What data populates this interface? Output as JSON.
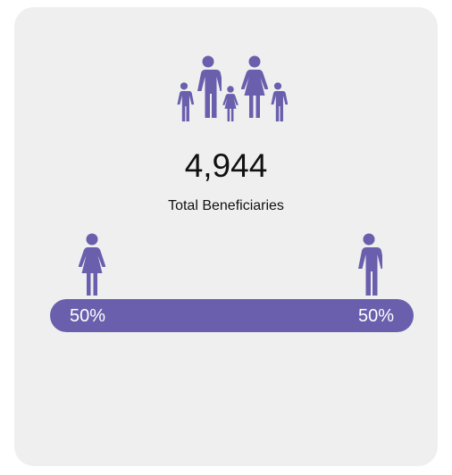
{
  "summary": {
    "total": "4,944",
    "label": "Total Beneficiaries"
  },
  "split": {
    "values": [
      50,
      50
    ],
    "value_labels": [
      "50%",
      "50%"
    ],
    "color": "#6a5fad"
  }
}
